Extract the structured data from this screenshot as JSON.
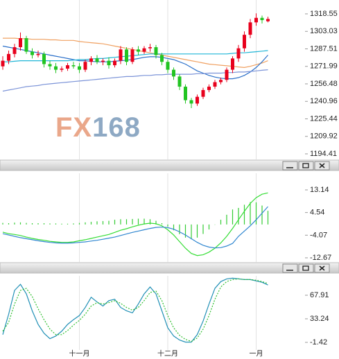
{
  "chart_data": [
    {
      "type": "candlestick",
      "watermark": [
        "FX",
        "168"
      ],
      "ylim": [
        1189.49,
        1330.84
      ],
      "yticks": [
        1318.55,
        1303.03,
        1287.51,
        1271.99,
        1256.48,
        1240.96,
        1225.44,
        1209.92,
        1194.41
      ],
      "up_color": "#e8001c",
      "down_color": "#22c422",
      "open": [
        1272,
        1277,
        1283,
        1289,
        1297,
        1285,
        1282,
        1283,
        1274,
        1272,
        1269,
        1270,
        1273,
        1272,
        1269,
        1276,
        1279,
        1276,
        1277,
        1273,
        1277,
        1287,
        1276,
        1287,
        1285,
        1288,
        1289,
        1282,
        1276,
        1269,
        1263,
        1254,
        1242,
        1239,
        1245,
        1251,
        1254,
        1258,
        1260,
        1269,
        1279,
        1288,
        1300,
        1311,
        1315,
        1312
      ],
      "high": [
        1281,
        1286,
        1292,
        1302,
        1299,
        1288,
        1286,
        1285,
        1277,
        1275,
        1272,
        1275,
        1276,
        1275,
        1278,
        1281,
        1282,
        1279,
        1280,
        1279,
        1290,
        1289,
        1289,
        1290,
        1290,
        1292,
        1291,
        1284,
        1278,
        1271,
        1265,
        1256,
        1244,
        1247,
        1253,
        1256,
        1260,
        1262,
        1271,
        1281,
        1291,
        1303,
        1314,
        1319,
        1317,
        1316
      ],
      "low": [
        1269,
        1274,
        1280,
        1286,
        1283,
        1279,
        1280,
        1271,
        1269,
        1266,
        1267,
        1268,
        1270,
        1266,
        1267,
        1273,
        1274,
        1273,
        1270,
        1271,
        1274,
        1273,
        1274,
        1282,
        1283,
        1285,
        1279,
        1273,
        1266,
        1260,
        1251,
        1239,
        1235,
        1237,
        1243,
        1249,
        1252,
        1256,
        1258,
        1266,
        1276,
        1285,
        1297,
        1308,
        1310,
        1311
      ],
      "close": [
        1277,
        1283,
        1289,
        1297,
        1285,
        1282,
        1283,
        1274,
        1272,
        1269,
        1270,
        1273,
        1272,
        1269,
        1276,
        1279,
        1276,
        1277,
        1273,
        1277,
        1287,
        1276,
        1287,
        1285,
        1288,
        1289,
        1282,
        1276,
        1269,
        1263,
        1254,
        1242,
        1239,
        1245,
        1251,
        1254,
        1258,
        1260,
        1269,
        1279,
        1288,
        1300,
        1311,
        1315,
        1313,
        1314
      ],
      "series": [
        {
          "color": "#f0a060",
          "values": [
            1297,
            1297,
            1297,
            1296.5,
            1296.5,
            1296,
            1296,
            1296,
            1295.5,
            1295.5,
            1295,
            1295,
            1295,
            1294,
            1293.5,
            1293,
            1292.5,
            1292,
            1291,
            1290,
            1289,
            1288,
            1287,
            1286,
            1285,
            1284,
            1283,
            1282,
            1281,
            1280,
            1279,
            1278,
            1277,
            1276,
            1275,
            1274,
            1273.5,
            1273,
            1272.5,
            1272,
            1271.5,
            1271,
            1272,
            1273.5,
            1275,
            1277
          ]
        },
        {
          "color": "#2a6fc9",
          "values": [
            1290,
            1289,
            1288,
            1287,
            1286,
            1285,
            1284,
            1283,
            1282,
            1281,
            1280,
            1279,
            1278,
            1277,
            1277,
            1276.5,
            1276,
            1276,
            1276,
            1276.5,
            1277,
            1277.5,
            1278,
            1279,
            1280,
            1280.5,
            1280.5,
            1280,
            1279,
            1278,
            1276,
            1274,
            1271,
            1268,
            1266,
            1264,
            1262.5,
            1261.5,
            1261,
            1261,
            1262,
            1264,
            1267,
            1271,
            1276,
            1282
          ]
        },
        {
          "color": "#1fb5d6",
          "values": [
            1276,
            1276,
            1276.5,
            1277,
            1277,
            1277,
            1277,
            1277,
            1277,
            1277,
            1277,
            1277,
            1277.5,
            1278,
            1278,
            1278.5,
            1279,
            1279,
            1279.5,
            1280,
            1280.5,
            1281,
            1281.5,
            1282,
            1282.5,
            1283,
            1283,
            1283,
            1283,
            1283,
            1283,
            1283,
            1283,
            1283,
            1283,
            1283,
            1283,
            1283,
            1283,
            1283.5,
            1284,
            1284,
            1284.5,
            1285,
            1285.5,
            1286
          ]
        },
        {
          "color": "#7b93d8",
          "values": [
            1250,
            1251,
            1252,
            1253,
            1254,
            1254.5,
            1255,
            1256,
            1256.5,
            1257,
            1257.5,
            1258,
            1258.5,
            1259,
            1259.5,
            1260,
            1260.5,
            1261,
            1261.5,
            1262,
            1262.5,
            1263,
            1263,
            1263.5,
            1264,
            1264,
            1264.5,
            1264.5,
            1265,
            1265,
            1265,
            1265,
            1265,
            1265.5,
            1265.5,
            1266,
            1266,
            1266,
            1266.5,
            1266.5,
            1267,
            1267,
            1267.5,
            1268,
            1268.5,
            1269
          ]
        }
      ]
    },
    {
      "type": "macd",
      "ylim": [
        -14.25,
        19.46
      ],
      "yticks": [
        13.14,
        4.54,
        -4.07,
        -12.67
      ],
      "hist_color": "#33cc33",
      "hist": [
        0.6,
        0.5,
        0.7,
        0.8,
        0.6,
        0.5,
        0.5,
        0.5,
        0.4,
        0.4,
        0.3,
        0.3,
        0.4,
        0.6,
        0.8,
        1.0,
        1.2,
        1.3,
        1.4,
        1.8,
        2.0,
        2.0,
        2.1,
        2.2,
        2.2,
        2.0,
        1.4,
        0.5,
        -0.8,
        -2.2,
        -3.7,
        -5.0,
        -5.6,
        -5.0,
        -3.6,
        -1.9,
        -0.1,
        1.8,
        3.7,
        5.7,
        6.3,
        7.5,
        8.5,
        8.4,
        7.2,
        5.2
      ],
      "series": [
        {
          "color": "#33dd33",
          "values": [
            -2.9,
            -3.5,
            -3.8,
            -4.2,
            -4.8,
            -5.3,
            -5.7,
            -6.0,
            -6.4,
            -6.6,
            -6.8,
            -6.8,
            -6.6,
            -6.2,
            -5.8,
            -5.3,
            -4.8,
            -4.3,
            -3.8,
            -3.0,
            -2.2,
            -1.6,
            -0.9,
            -0.3,
            0.2,
            0.5,
            0.3,
            -0.5,
            -2.0,
            -4.0,
            -6.5,
            -9.0,
            -11.0,
            -11.8,
            -11.5,
            -10.5,
            -9.0,
            -7.0,
            -4.5,
            -1.5,
            1.8,
            5.0,
            8.0,
            10.2,
            11.5,
            12.0
          ]
        },
        {
          "color": "#2f86d0",
          "values": [
            -3.5,
            -4.0,
            -4.5,
            -5.0,
            -5.4,
            -5.8,
            -6.2,
            -6.5,
            -6.8,
            -7.0,
            -7.1,
            -7.1,
            -7.0,
            -6.8,
            -6.6,
            -6.3,
            -6.0,
            -5.6,
            -5.2,
            -4.8,
            -4.2,
            -3.6,
            -3.0,
            -2.5,
            -2.0,
            -1.5,
            -1.1,
            -1.0,
            -1.2,
            -1.8,
            -2.8,
            -4.0,
            -5.4,
            -6.8,
            -7.9,
            -8.6,
            -8.9,
            -8.8,
            -8.2,
            -7.2,
            -4.5,
            -2.5,
            -0.5,
            1.8,
            4.3,
            6.8
          ]
        }
      ]
    },
    {
      "type": "line",
      "ylim": [
        -12.64,
        96.46
      ],
      "yticks": [
        67.91,
        33.24,
        -1.42
      ],
      "categories": [
        null,
        null,
        null,
        null,
        null,
        null,
        null,
        null,
        null,
        null,
        null,
        null,
        null,
        "十一月",
        null,
        null,
        null,
        null,
        null,
        null,
        null,
        null,
        null,
        null,
        null,
        null,
        null,
        null,
        "十二月",
        null,
        null,
        null,
        null,
        null,
        null,
        null,
        null,
        null,
        null,
        null,
        null,
        null,
        null,
        "一月",
        null,
        null
      ],
      "series": [
        {
          "color": "#1f8fb5",
          "values": [
            10,
            40,
            75,
            84,
            70,
            45,
            25,
            12,
            4,
            8,
            15,
            25,
            32,
            38,
            50,
            65,
            58,
            52,
            60,
            62,
            50,
            45,
            42,
            55,
            70,
            80,
            70,
            45,
            20,
            8,
            2,
            -1,
            -1,
            10,
            30,
            55,
            78,
            88,
            92,
            93,
            92,
            91,
            91,
            89,
            87,
            83
          ]
        },
        {
          "color": "#2fbf2f",
          "dashed": true,
          "values": [
            15,
            28,
            55,
            75,
            78,
            66,
            48,
            32,
            18,
            10,
            10,
            16,
            24,
            31,
            40,
            52,
            57,
            55,
            57,
            60,
            56,
            50,
            46,
            50,
            60,
            72,
            74,
            60,
            38,
            20,
            9,
            3,
            0,
            5,
            18,
            38,
            62,
            80,
            88,
            91,
            92,
            91,
            91,
            90,
            88,
            85
          ]
        }
      ]
    }
  ]
}
